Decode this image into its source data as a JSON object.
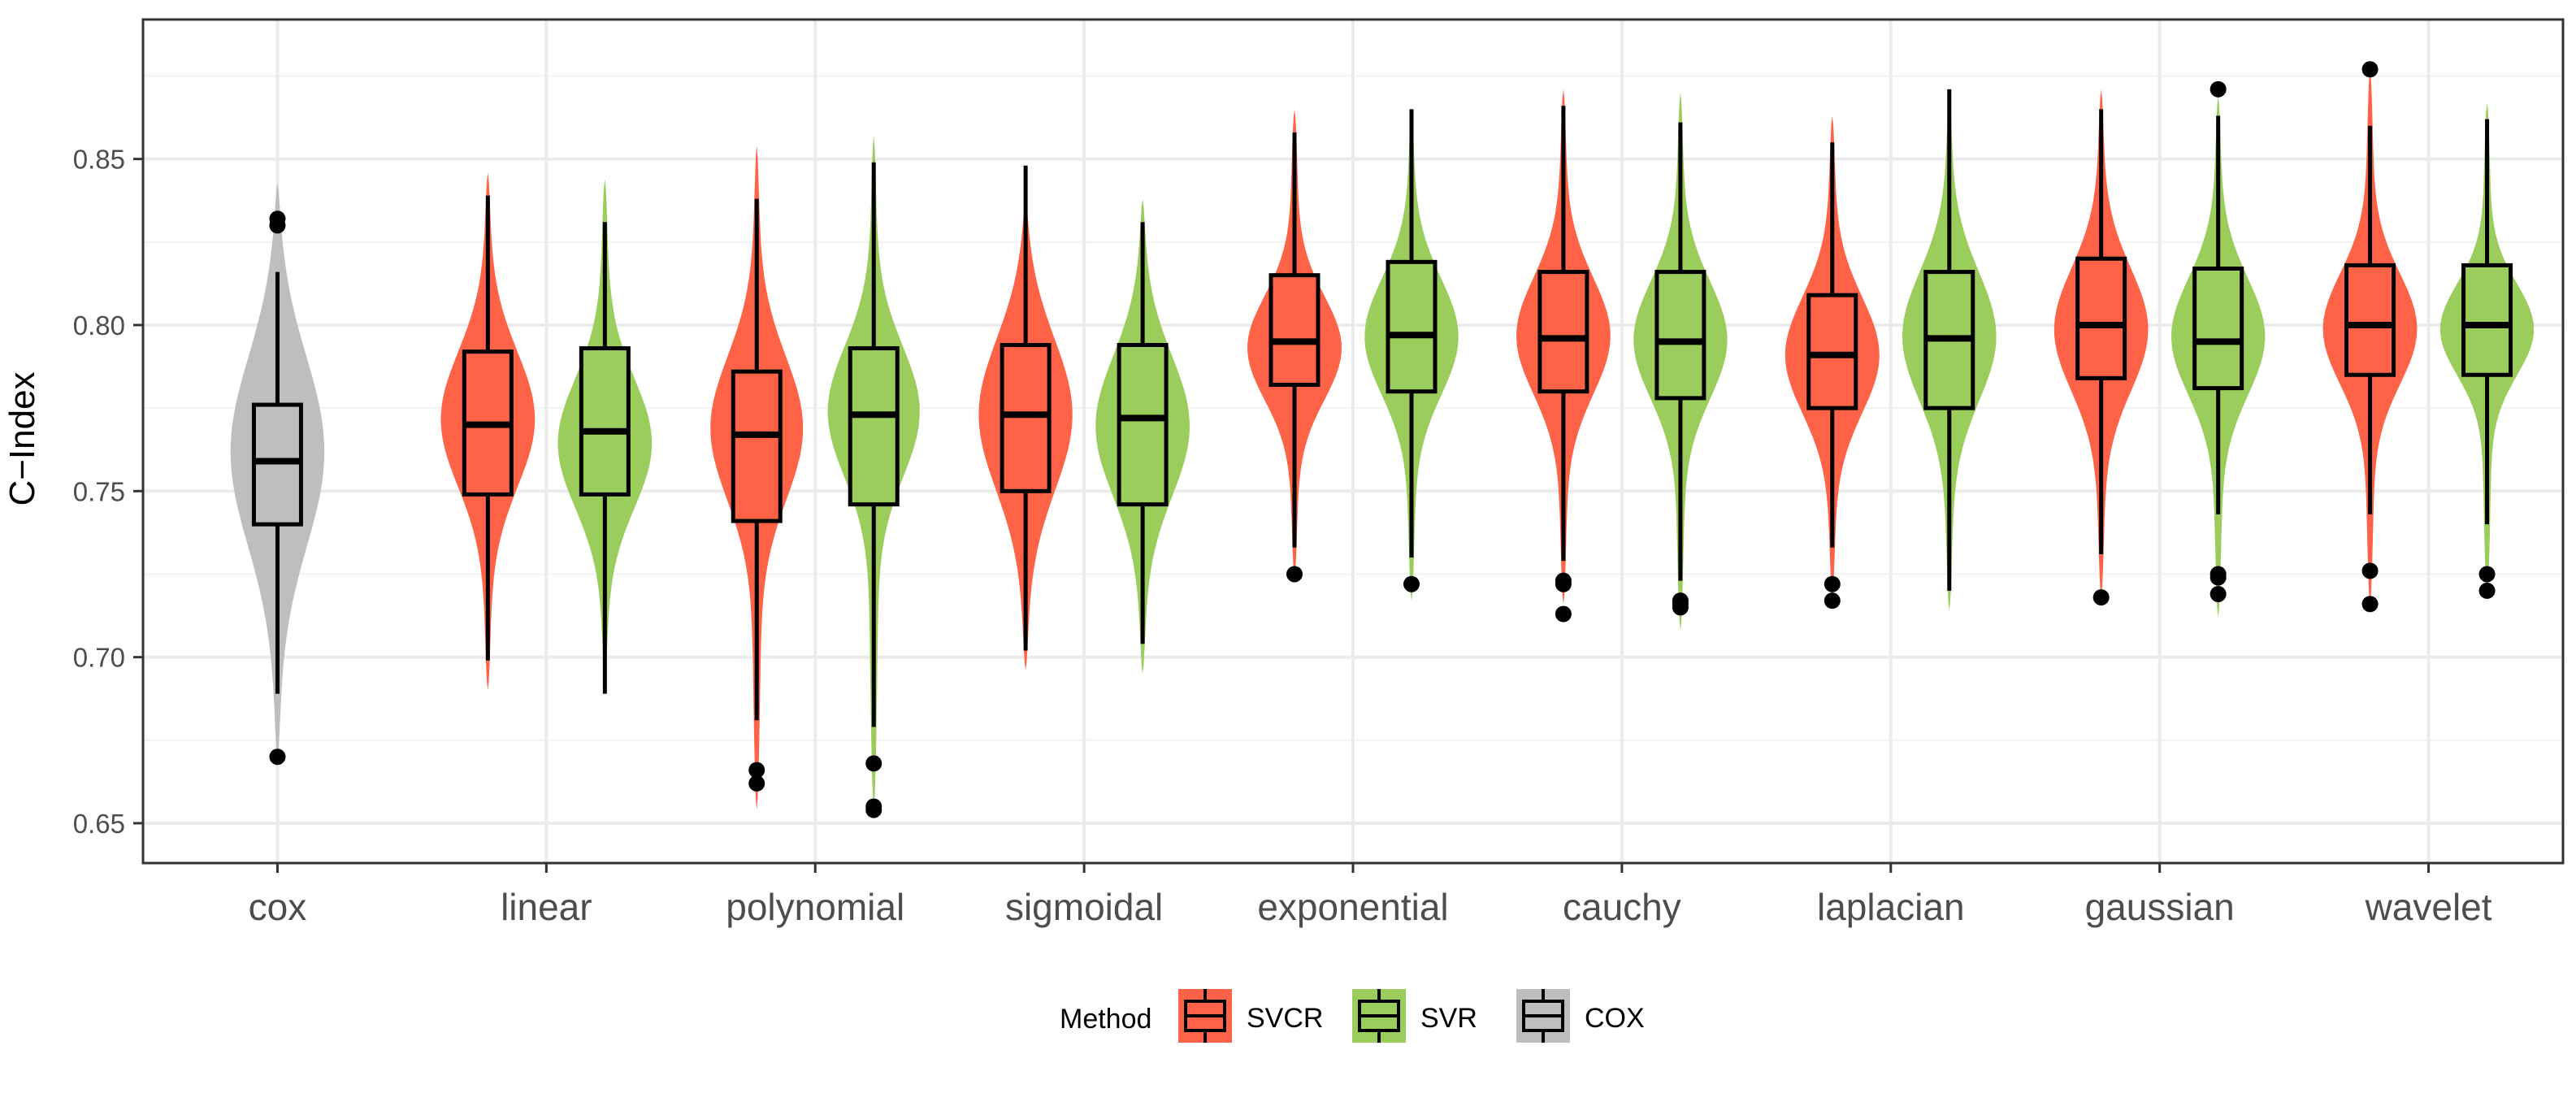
{
  "chart_data": {
    "type": "violin-boxplot",
    "title": "",
    "xlabel": "",
    "ylabel": "C−Index",
    "ylim": [
      0.638,
      0.892
    ],
    "yticks": [
      0.65,
      0.7,
      0.75,
      0.8,
      0.85
    ],
    "ytick_labels": [
      "0.65",
      "0.70",
      "0.75",
      "0.80",
      "0.85"
    ],
    "grid": true,
    "legend_position": "bottom",
    "categories": [
      "cox",
      "linear",
      "polynomial",
      "sigmoidal",
      "exponential",
      "cauchy",
      "laplacian",
      "gaussian",
      "wavelet"
    ],
    "legend": {
      "title": "Method",
      "entries": [
        {
          "label": "SVCR",
          "color": "#FF6347"
        },
        {
          "label": "SVR",
          "color": "#9ACD5C"
        },
        {
          "label": "COX",
          "color": "#BEBEBE"
        }
      ]
    },
    "series": [
      {
        "method": "COX",
        "category": "cox",
        "color": "#BEBEBE",
        "violin_range": [
          0.668,
          0.843
        ],
        "mode": 0.763,
        "spread": 0.03,
        "whisker_low": 0.689,
        "q1": 0.74,
        "median": 0.759,
        "q3": 0.776,
        "whisker_high": 0.816,
        "outliers": [
          0.67,
          0.83,
          0.832
        ]
      },
      {
        "method": "SVCR",
        "category": "linear",
        "color": "#FF6347",
        "violin_range": [
          0.69,
          0.846
        ],
        "mode": 0.772,
        "spread": 0.021,
        "whisker_low": 0.699,
        "q1": 0.749,
        "median": 0.77,
        "q3": 0.792,
        "whisker_high": 0.839,
        "outliers": []
      },
      {
        "method": "SVR",
        "category": "linear",
        "color": "#9ACD5C",
        "violin_range": [
          0.692,
          0.844
        ],
        "mode": 0.764,
        "spread": 0.02,
        "whisker_low": 0.689,
        "q1": 0.749,
        "median": 0.768,
        "q3": 0.793,
        "whisker_high": 0.831,
        "outliers": []
      },
      {
        "method": "SVCR",
        "category": "polynomial",
        "color": "#FF6347",
        "violin_range": [
          0.654,
          0.854
        ],
        "mode": 0.77,
        "spread": 0.022,
        "whisker_low": 0.681,
        "q1": 0.741,
        "median": 0.767,
        "q3": 0.786,
        "whisker_high": 0.838,
        "outliers": [
          0.662,
          0.666
        ]
      },
      {
        "method": "SVR",
        "category": "polynomial",
        "color": "#9ACD5C",
        "violin_range": [
          0.655,
          0.857
        ],
        "mode": 0.775,
        "spread": 0.02,
        "whisker_low": 0.679,
        "q1": 0.746,
        "median": 0.773,
        "q3": 0.793,
        "whisker_high": 0.849,
        "outliers": [
          0.654,
          0.655,
          0.668
        ]
      },
      {
        "method": "SVCR",
        "category": "sigmoidal",
        "color": "#FF6347",
        "violin_range": [
          0.696,
          0.838
        ],
        "mode": 0.774,
        "spread": 0.024,
        "whisker_low": 0.702,
        "q1": 0.75,
        "median": 0.773,
        "q3": 0.794,
        "whisker_high": 0.848,
        "outliers": []
      },
      {
        "method": "SVR",
        "category": "sigmoidal",
        "color": "#9ACD5C",
        "violin_range": [
          0.695,
          0.838
        ],
        "mode": 0.77,
        "spread": 0.022,
        "whisker_low": 0.704,
        "q1": 0.746,
        "median": 0.772,
        "q3": 0.794,
        "whisker_high": 0.831,
        "outliers": []
      },
      {
        "method": "SVCR",
        "category": "exponential",
        "color": "#FF6347",
        "violin_range": [
          0.724,
          0.865
        ],
        "mode": 0.793,
        "spread": 0.016,
        "whisker_low": 0.733,
        "q1": 0.782,
        "median": 0.795,
        "q3": 0.815,
        "whisker_high": 0.858,
        "outliers": [
          0.725
        ]
      },
      {
        "method": "SVR",
        "category": "exponential",
        "color": "#9ACD5C",
        "violin_range": [
          0.717,
          0.865
        ],
        "mode": 0.797,
        "spread": 0.018,
        "whisker_low": 0.73,
        "q1": 0.78,
        "median": 0.797,
        "q3": 0.819,
        "whisker_high": 0.865,
        "outliers": [
          0.722
        ]
      },
      {
        "method": "SVCR",
        "category": "cauchy",
        "color": "#FF6347",
        "violin_range": [
          0.716,
          0.871
        ],
        "mode": 0.797,
        "spread": 0.018,
        "whisker_low": 0.729,
        "q1": 0.78,
        "median": 0.796,
        "q3": 0.816,
        "whisker_high": 0.866,
        "outliers": [
          0.713,
          0.722,
          0.723
        ]
      },
      {
        "method": "SVR",
        "category": "cauchy",
        "color": "#9ACD5C",
        "violin_range": [
          0.708,
          0.87
        ],
        "mode": 0.796,
        "spread": 0.018,
        "whisker_low": 0.723,
        "q1": 0.778,
        "median": 0.795,
        "q3": 0.816,
        "whisker_high": 0.861,
        "outliers": [
          0.715,
          0.716,
          0.717
        ]
      },
      {
        "method": "SVCR",
        "category": "laplacian",
        "color": "#FF6347",
        "violin_range": [
          0.718,
          0.863
        ],
        "mode": 0.791,
        "spread": 0.018,
        "whisker_low": 0.733,
        "q1": 0.775,
        "median": 0.791,
        "q3": 0.809,
        "whisker_high": 0.855,
        "outliers": [
          0.717,
          0.722
        ]
      },
      {
        "method": "SVR",
        "category": "laplacian",
        "color": "#9ACD5C",
        "violin_range": [
          0.714,
          0.87
        ],
        "mode": 0.797,
        "spread": 0.02,
        "whisker_low": 0.72,
        "q1": 0.775,
        "median": 0.796,
        "q3": 0.816,
        "whisker_high": 0.871,
        "outliers": []
      },
      {
        "method": "SVCR",
        "category": "gaussian",
        "color": "#FF6347",
        "violin_range": [
          0.718,
          0.871
        ],
        "mode": 0.799,
        "spread": 0.019,
        "whisker_low": 0.731,
        "q1": 0.784,
        "median": 0.8,
        "q3": 0.82,
        "whisker_high": 0.865,
        "outliers": [
          0.718
        ]
      },
      {
        "method": "SVR",
        "category": "gaussian",
        "color": "#9ACD5C",
        "violin_range": [
          0.712,
          0.869
        ],
        "mode": 0.797,
        "spread": 0.018,
        "whisker_low": 0.743,
        "q1": 0.781,
        "median": 0.795,
        "q3": 0.817,
        "whisker_high": 0.863,
        "outliers": [
          0.719,
          0.724,
          0.725,
          0.871
        ]
      },
      {
        "method": "SVCR",
        "category": "wavelet",
        "color": "#FF6347",
        "violin_range": [
          0.716,
          0.877
        ],
        "mode": 0.799,
        "spread": 0.017,
        "whisker_low": 0.743,
        "q1": 0.785,
        "median": 0.8,
        "q3": 0.818,
        "whisker_high": 0.86,
        "outliers": [
          0.716,
          0.726,
          0.877
        ]
      },
      {
        "method": "SVR",
        "category": "wavelet",
        "color": "#9ACD5C",
        "violin_range": [
          0.719,
          0.867
        ],
        "mode": 0.799,
        "spread": 0.014,
        "whisker_low": 0.74,
        "q1": 0.785,
        "median": 0.8,
        "q3": 0.818,
        "whisker_high": 0.862,
        "outliers": [
          0.72,
          0.725
        ]
      }
    ]
  }
}
